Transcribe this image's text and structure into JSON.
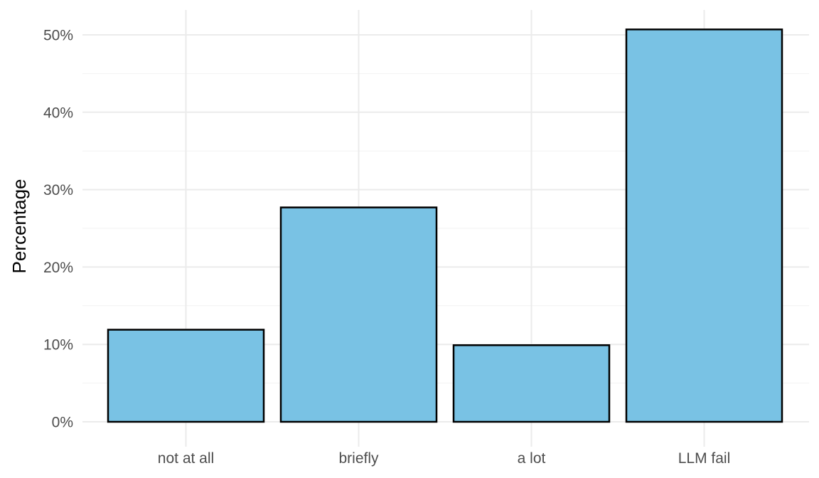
{
  "chart_data": {
    "type": "bar",
    "categories": [
      "not at all",
      "briefly",
      "a lot",
      "LLM fail"
    ],
    "values": [
      11.9,
      27.7,
      9.9,
      50.7
    ],
    "value_unit": "%",
    "title": "",
    "xlabel": "",
    "ylabel": "Percentage",
    "ylim": [
      0,
      52.5
    ],
    "yticks": [
      0,
      10,
      20,
      30,
      40,
      50
    ],
    "ytick_labels": [
      "0%",
      "10%",
      "20%",
      "30%",
      "40%",
      "50%"
    ],
    "grid": true,
    "legend": "none",
    "colors": {
      "bar_fill": "#79c2e4",
      "bar_stroke": "#000000"
    }
  }
}
